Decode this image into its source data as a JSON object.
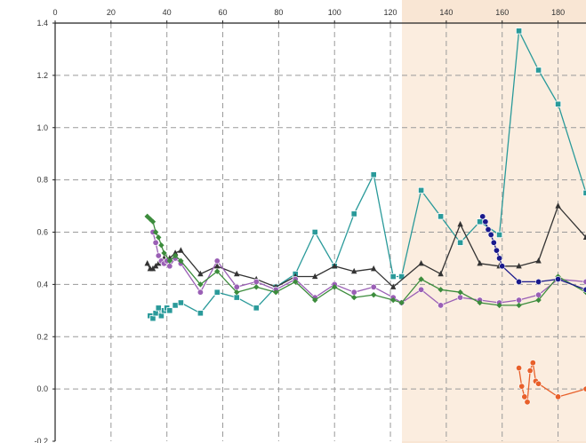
{
  "chart_data": {
    "type": "line",
    "title": "",
    "xlabel": "",
    "ylabel": "",
    "xlim": [
      0,
      190
    ],
    "ylim": [
      -0.2,
      1.4
    ],
    "x_ticks": [
      0,
      20,
      40,
      60,
      80,
      100,
      120,
      140,
      160,
      180
    ],
    "y_ticks": [
      -0.2,
      0.0,
      0.2,
      0.4,
      0.6,
      0.8,
      1.0,
      1.2,
      1.4
    ],
    "x_tick_labels": [
      "0",
      "20",
      "40",
      "60",
      "80",
      "100",
      "120",
      "140",
      "160",
      "180"
    ],
    "y_tick_labels": [
      "-0.2",
      "0.0",
      "0.2",
      "0.4",
      "0.6",
      "0.8",
      "1.0",
      "1.2",
      "1.4"
    ],
    "x_axis_position": "top",
    "grid": true,
    "legend": "none",
    "colors": {
      "background_highlight": "#f9e6d4",
      "gridline": "#9a9a9a",
      "axis": "#222222"
    },
    "series": [
      {
        "color": "#2a9a9a",
        "marker": "square",
        "x": [
          34,
          35,
          36,
          37,
          38,
          39,
          40,
          41,
          43,
          45,
          52,
          58,
          65,
          72,
          79,
          86,
          93,
          100,
          107,
          114,
          121,
          124,
          131,
          138,
          145,
          152,
          159,
          166,
          173,
          180,
          190
        ],
        "y": [
          0.28,
          0.27,
          0.29,
          0.31,
          0.28,
          0.3,
          0.31,
          0.3,
          0.32,
          0.33,
          0.29,
          0.37,
          0.35,
          0.31,
          0.39,
          0.44,
          0.6,
          0.47,
          0.67,
          0.82,
          0.43,
          0.43,
          0.76,
          0.66,
          0.56,
          0.64,
          0.59,
          1.37,
          1.22,
          1.09,
          0.75
        ]
      },
      {
        "color": "#333333",
        "marker": "triangle",
        "x": [
          33,
          34,
          35,
          36,
          37,
          38,
          39,
          40,
          41,
          43,
          45,
          52,
          58,
          65,
          72,
          79,
          86,
          93,
          100,
          107,
          114,
          121,
          131,
          138,
          145,
          152,
          159,
          166,
          173,
          180,
          190
        ],
        "y": [
          0.48,
          0.46,
          0.46,
          0.47,
          0.48,
          0.49,
          0.5,
          0.48,
          0.5,
          0.52,
          0.53,
          0.44,
          0.47,
          0.44,
          0.42,
          0.39,
          0.43,
          0.43,
          0.47,
          0.45,
          0.46,
          0.39,
          0.48,
          0.44,
          0.63,
          0.48,
          0.47,
          0.47,
          0.49,
          0.7,
          0.58
        ]
      },
      {
        "color": "#9a5fb5",
        "marker": "circle",
        "x": [
          35,
          36,
          37,
          38,
          39,
          40,
          41,
          43,
          45,
          52,
          58,
          65,
          72,
          79,
          86,
          93,
          100,
          107,
          114,
          121,
          124,
          131,
          138,
          145,
          152,
          159,
          166,
          173,
          180,
          190
        ],
        "y": [
          0.6,
          0.56,
          0.51,
          0.49,
          0.48,
          0.49,
          0.47,
          0.5,
          0.48,
          0.37,
          0.49,
          0.39,
          0.41,
          0.38,
          0.42,
          0.35,
          0.4,
          0.37,
          0.39,
          0.35,
          0.33,
          0.38,
          0.32,
          0.35,
          0.34,
          0.33,
          0.34,
          0.36,
          0.42,
          0.41
        ]
      },
      {
        "color": "#3c8c3c",
        "marker": "diamond",
        "x": [
          33,
          34,
          35,
          36,
          37,
          38,
          39,
          41,
          43,
          45,
          52,
          58,
          65,
          72,
          79,
          86,
          93,
          100,
          107,
          114,
          121,
          124,
          131,
          138,
          145,
          152,
          159,
          166,
          173,
          180,
          190
        ],
        "y": [
          0.66,
          0.65,
          0.64,
          0.6,
          0.58,
          0.55,
          0.52,
          0.49,
          0.51,
          0.49,
          0.4,
          0.45,
          0.37,
          0.39,
          0.37,
          0.41,
          0.34,
          0.39,
          0.35,
          0.36,
          0.34,
          0.33,
          0.42,
          0.38,
          0.37,
          0.33,
          0.32,
          0.32,
          0.34,
          0.43,
          0.37
        ]
      },
      {
        "color": "#1a1a8c",
        "marker": "circle",
        "x": [
          153,
          154,
          155,
          156,
          157,
          158,
          159,
          160,
          166,
          173,
          180,
          190
        ],
        "y": [
          0.66,
          0.64,
          0.61,
          0.59,
          0.56,
          0.53,
          0.5,
          0.47,
          0.41,
          0.41,
          0.42,
          0.38
        ]
      },
      {
        "color": "#e8602a",
        "marker": "circle",
        "x": [
          166,
          167,
          168,
          169,
          170,
          171,
          172,
          173,
          180,
          190
        ],
        "y": [
          0.08,
          0.01,
          -0.03,
          -0.05,
          0.07,
          0.1,
          0.03,
          0.02,
          -0.03,
          0.0
        ]
      }
    ]
  }
}
